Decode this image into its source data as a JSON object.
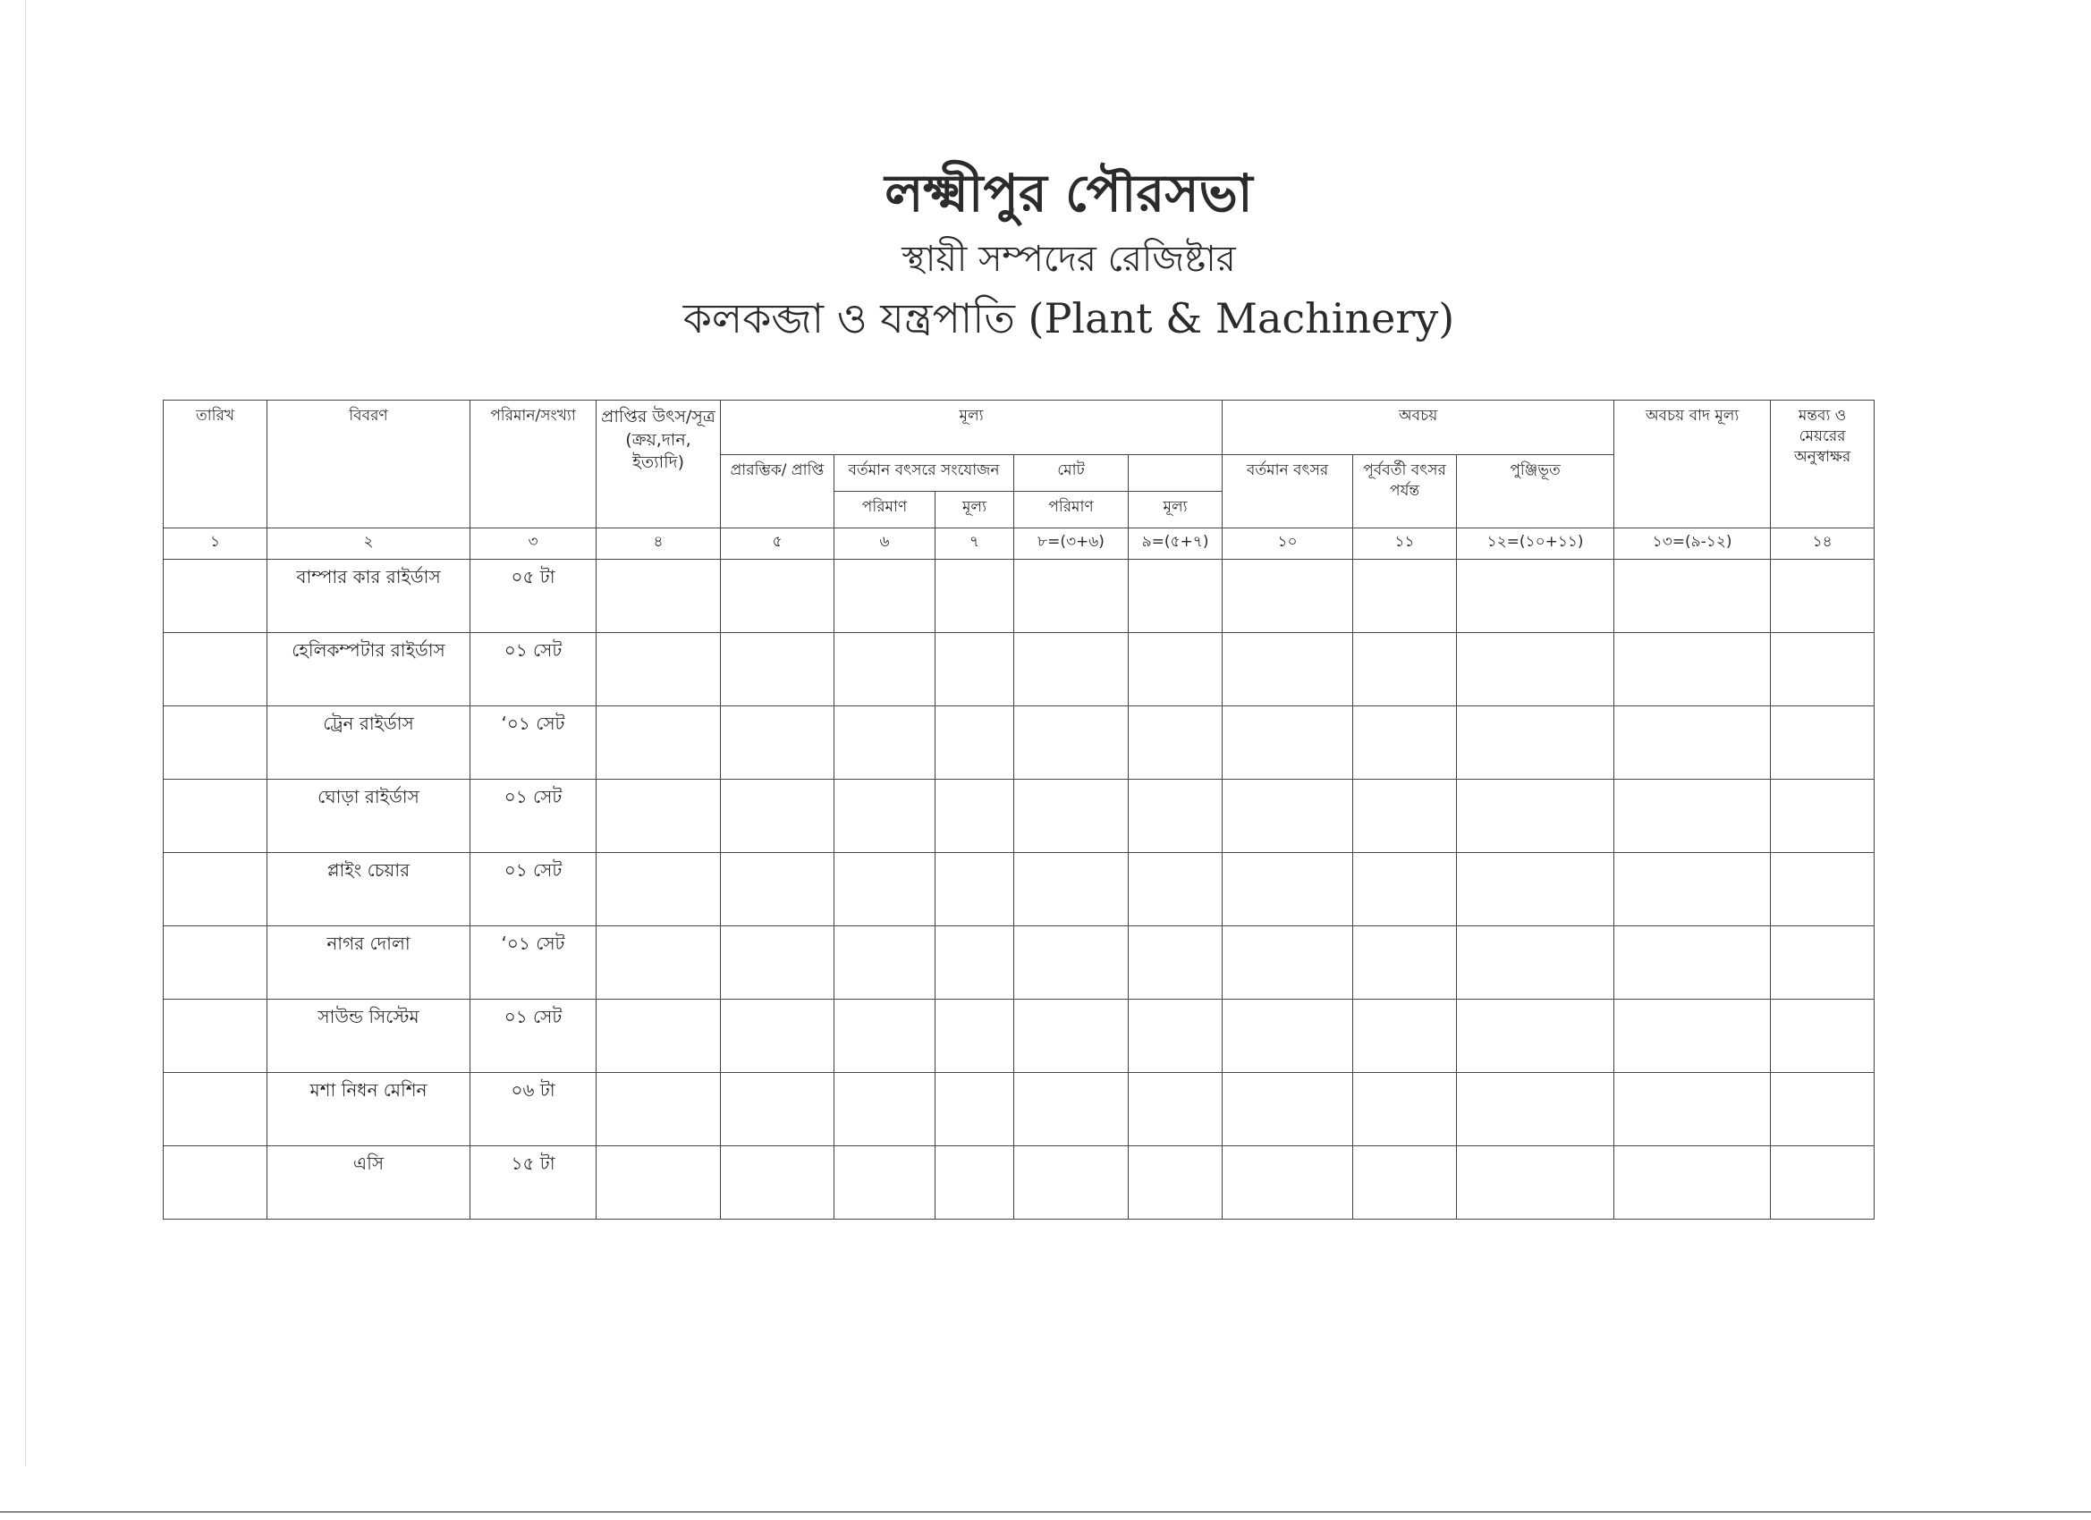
{
  "header": {
    "title": "লক্ষ্মীপুর পৌরসভা",
    "subtitle": "স্থায়ী সম্পদের রেজিষ্টার",
    "section": "কলকব্জা ও যন্ত্রপাতি (Plant & Machinery)"
  },
  "table": {
    "col_date": "তারিখ",
    "col_desc": "বিবরণ",
    "col_qty": "পরিমান/সংখ্যা",
    "col_source": "প্রাপ্তির উৎস/সূত্র (ক্রয়,দান, ইত্যাদি)",
    "col_value": "মূল্য",
    "col_depr": "অবচয়",
    "col_net": "অবচয় বাদ মূল্য",
    "col_remarks": "মন্তব্য ও মেয়রের অনুস্বাক্ষর",
    "sub_initial": "প্রারম্ভিক/ প্রাপ্তি",
    "sub_addition": "বর্তমান বৎসরে সংযোজন",
    "sub_total": "মোট",
    "sub_cur_year": "বর্তমান বৎসর",
    "sub_prev_year": "পূর্ববর্তী বৎসর পর্যন্ত",
    "sub_accum": "পুঞ্জিভূত",
    "sub_qty": "পরিমাণ",
    "sub_price": "মূল্য",
    "numbers": [
      "১",
      "২",
      "৩",
      "৪",
      "৫",
      "৬",
      "৭",
      "৮=(৩+৬)",
      "৯=(৫+৭)",
      "১০",
      "১১",
      "১২=(১০+১১)",
      "১৩=(৯-১২)",
      "১৪"
    ],
    "rows": [
      {
        "desc": "বাম্পার কার রাইর্ডাস",
        "qty": "০৫ টা"
      },
      {
        "desc": "হেলিকম্পটার রাইর্ডাস",
        "qty": "০১ সেট"
      },
      {
        "desc": "ট্রেন রাইর্ডাস",
        "qty": "‘০১ সেট"
      },
      {
        "desc": "ঘোড়া রাইর্ডাস",
        "qty": "০১ সেট"
      },
      {
        "desc": "প্লাইং চেয়ার",
        "qty": "০১ সেট"
      },
      {
        "desc": "নাগর দোলা",
        "qty": "‘০১ সেট"
      },
      {
        "desc": "সাউন্ড সিস্টেম",
        "qty": "০১ সেট"
      },
      {
        "desc": "মশা নিধন মেশিন",
        "qty": "০৬ টা"
      },
      {
        "desc": "এসি",
        "qty": "১৫ টা"
      }
    ]
  }
}
